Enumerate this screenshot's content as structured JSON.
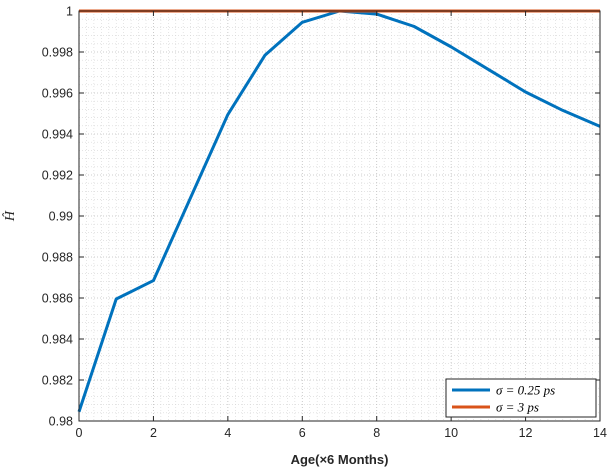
{
  "chart_data": {
    "type": "line",
    "title": "",
    "xlabel": "Age(×6 Months)",
    "ylabel": "Ĥ",
    "xlim": [
      0,
      14
    ],
    "ylim": [
      0.98,
      1.0
    ],
    "xticks": [
      "0",
      "2",
      "4",
      "6",
      "8",
      "10",
      "12",
      "14"
    ],
    "yticks": [
      "0.98",
      "0.982",
      "0.984",
      "0.986",
      "0.988",
      "0.99",
      "0.992",
      "0.994",
      "0.996",
      "0.998",
      "1"
    ],
    "grid": "major and minor (dotted)",
    "legend_placement": "bottom-right",
    "x": [
      0,
      1,
      2,
      3,
      4,
      5,
      6,
      7,
      8,
      9,
      10,
      11,
      12,
      13,
      14
    ],
    "series": [
      {
        "name": "σ = 0.25 ps",
        "color": "#0072BD",
        "values": [
          0.98045,
          0.98595,
          0.98685,
          0.9909,
          0.99495,
          0.99785,
          0.99945,
          1.0,
          0.99985,
          0.99925,
          0.99825,
          0.99715,
          0.99605,
          0.99515,
          0.99437
        ]
      },
      {
        "name": "σ = 3 ps",
        "color": "#D95319",
        "values": [
          1.0,
          1.0,
          1.0,
          1.0,
          1.0,
          1.0,
          1.0,
          1.0,
          1.0,
          1.0,
          1.0,
          1.0,
          1.0,
          1.0,
          1.0
        ]
      }
    ]
  }
}
